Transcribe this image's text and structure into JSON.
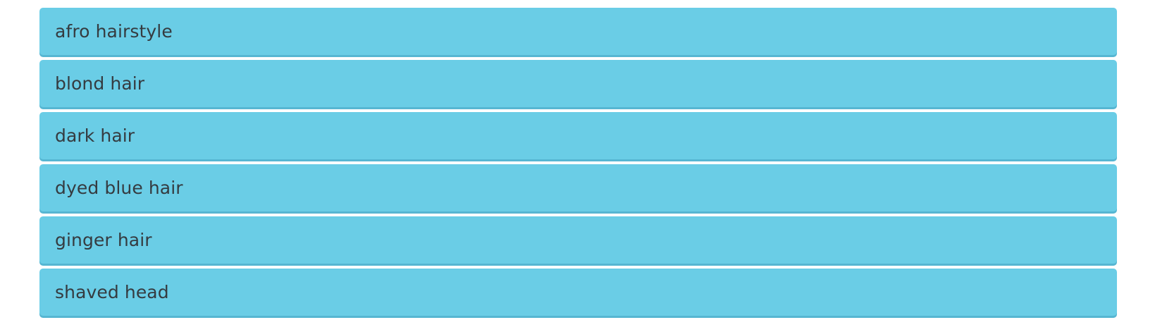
{
  "options": [
    {
      "label": "afro hairstyle"
    },
    {
      "label": "blond hair"
    },
    {
      "label": "dark hair"
    },
    {
      "label": "dyed blue hair"
    },
    {
      "label": "ginger hair"
    },
    {
      "label": "shaved head"
    }
  ],
  "colors": {
    "option_background": "#6acde6",
    "option_shadow": "#56b6d2",
    "option_text": "#353b40",
    "page_background": "#ffffff"
  }
}
